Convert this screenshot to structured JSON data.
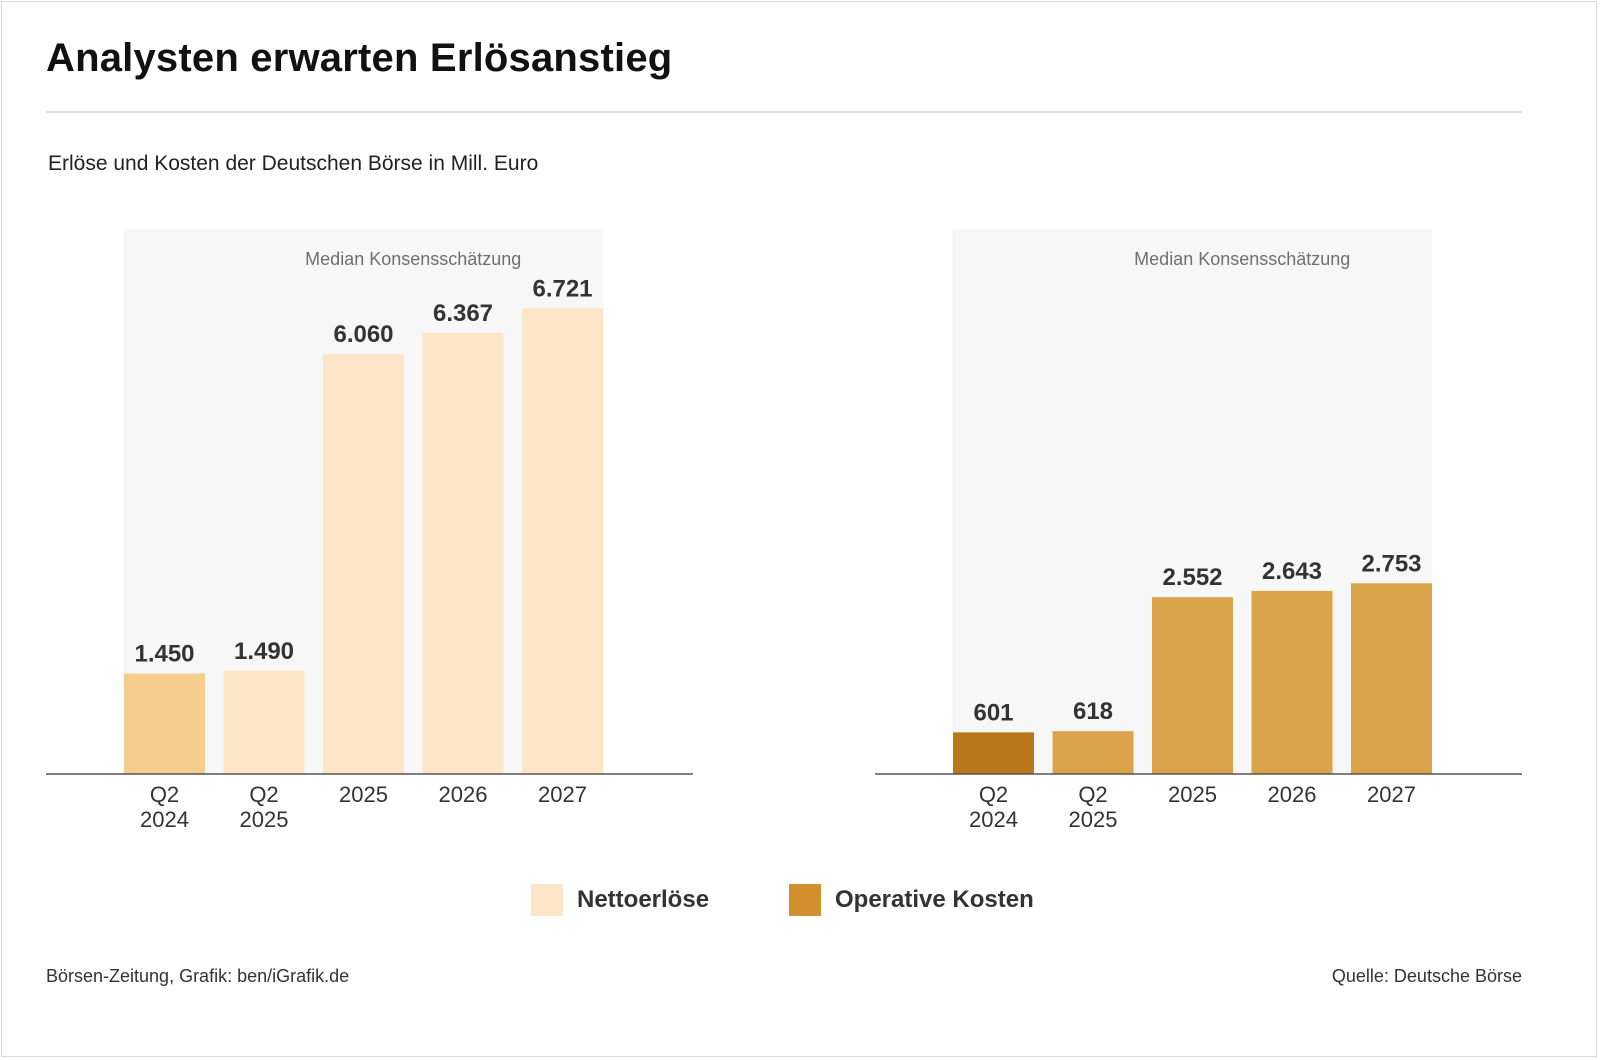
{
  "title": "Analysten erwarten Erlösanstieg",
  "subtitle": "Erlöse und Kosten der Deutschen Börse in Mill. Euro",
  "legend": [
    {
      "label": "Nettoerlöse",
      "color": "#fde5c7"
    },
    {
      "label": "Operative Kosten",
      "color": "#d4902f"
    }
  ],
  "footer": {
    "left": "Börsen-Zeitung, Grafik: ben/iGrafik.de",
    "right": "Quelle: Deutsche Börse"
  },
  "chart_data": [
    {
      "type": "bar",
      "categories": [
        [
          "Q2",
          "2024"
        ],
        [
          "Q2",
          "2025"
        ],
        [
          "2025"
        ],
        [
          "2026"
        ],
        [
          "2027"
        ]
      ],
      "values": [
        1450,
        1490,
        6060,
        6367,
        6721
      ],
      "value_labels": [
        "1.450",
        "1.490",
        "6.060",
        "6.367",
        "6.721"
      ],
      "colors": [
        "#f4cd8f",
        "#fde5c7",
        "#fde5c7",
        "#fde5c7",
        "#fde5c7"
      ],
      "annotation": "Median Konsensschätzung",
      "highlight_range": [
        1,
        4
      ],
      "ylim": [
        0,
        7000
      ]
    },
    {
      "type": "bar",
      "categories": [
        [
          "Q2",
          "2024"
        ],
        [
          "Q2",
          "2025"
        ],
        [
          "2025"
        ],
        [
          "2026"
        ],
        [
          "2027"
        ]
      ],
      "values": [
        601,
        618,
        2552,
        2643,
        2753
      ],
      "value_labels": [
        "601",
        "618",
        "2.552",
        "2.643",
        "2.753"
      ],
      "colors": [
        "#ba761a",
        "#dba44a",
        "#dba44a",
        "#dba44a",
        "#dba44a"
      ],
      "annotation": "Median Konsensschätzung",
      "highlight_range": [
        1,
        4
      ],
      "ylim": [
        0,
        7000
      ]
    }
  ]
}
